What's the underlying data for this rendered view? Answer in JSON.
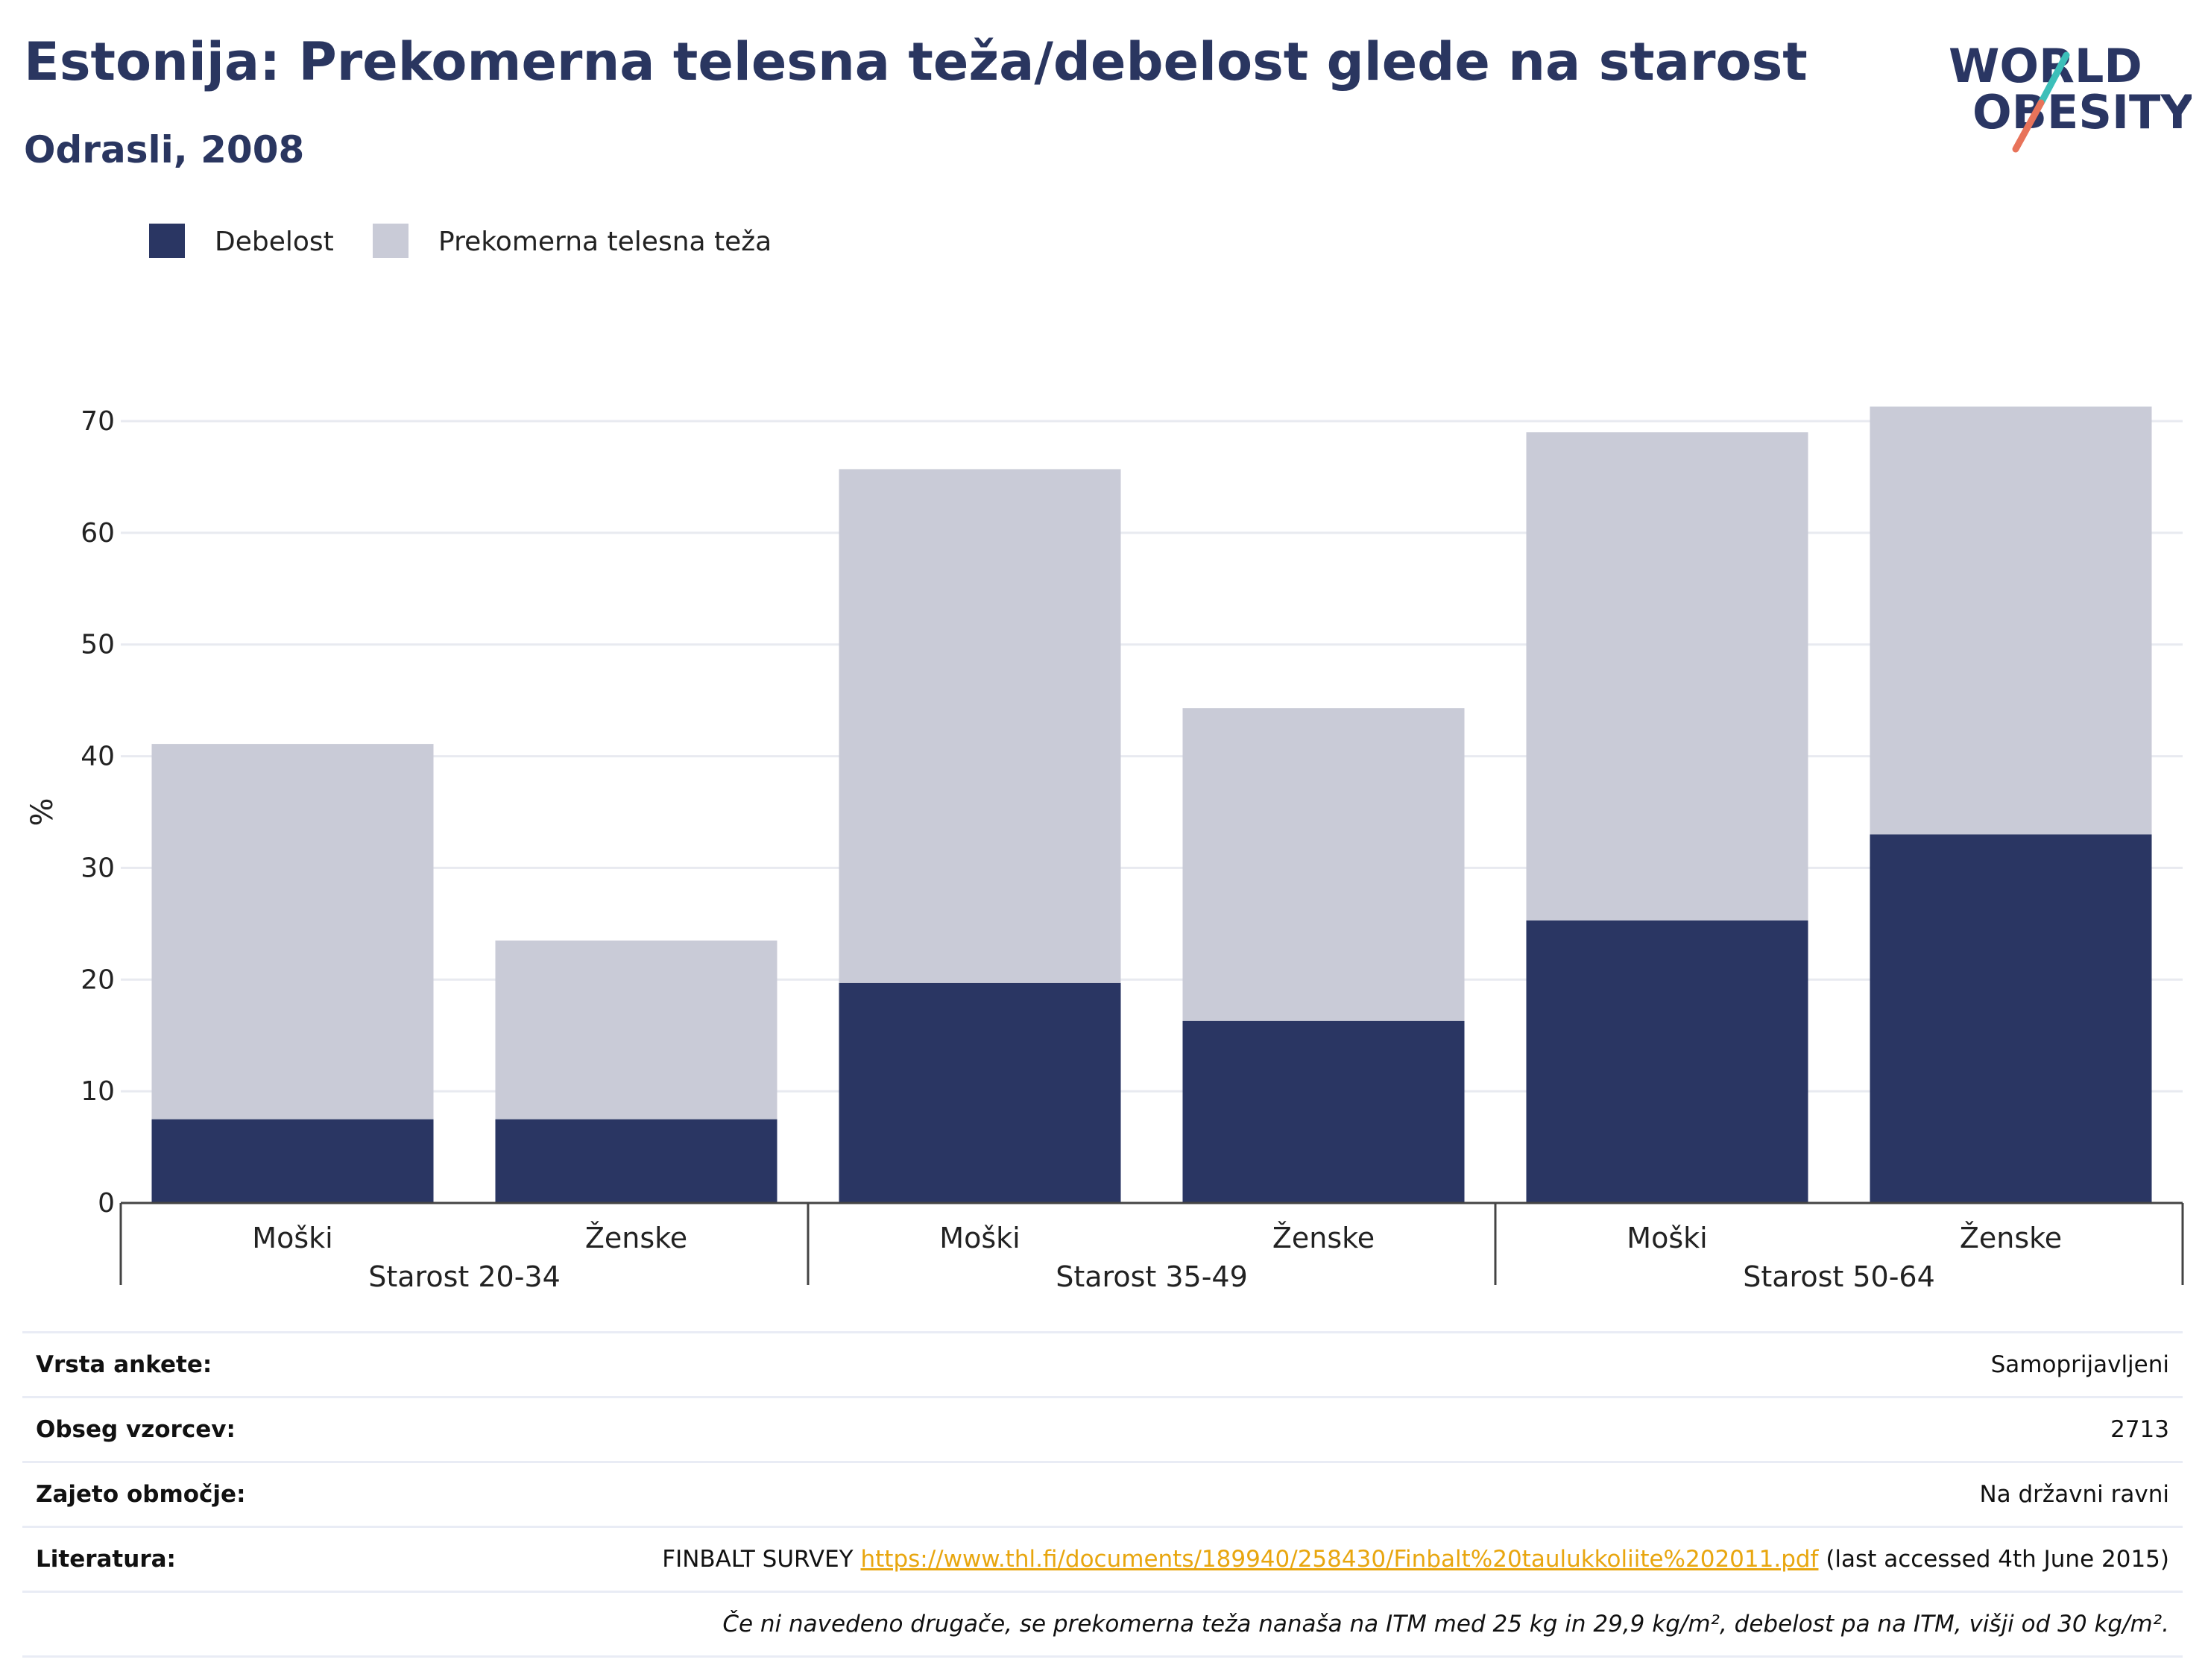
{
  "header": {
    "title": "Estonija: Prekomerna telesna teža/debelost glede na starost",
    "subtitle": "Odrasli, 2008"
  },
  "logo": {
    "line1": "WORLD",
    "line2": "OBESITY",
    "slash_colors": [
      "#3cbfb9",
      "#e8735a"
    ]
  },
  "colors": {
    "obesity": "#2a3663",
    "overweight": "#c9cbd7",
    "grid": "#e8eaf0",
    "axis": "#444444",
    "text": "#1f2a4a"
  },
  "chart_data": {
    "type": "bar",
    "stacked": true,
    "ylabel": "%",
    "ylim": [
      0,
      70
    ],
    "yticks": [
      0,
      10,
      20,
      30,
      40,
      50,
      60,
      70
    ],
    "legend": [
      "Debelost",
      "Prekomerna telesna teža"
    ],
    "legend_position": "top-left",
    "groups": [
      "Starost 20-34",
      "Starost 35-49",
      "Starost 50-64"
    ],
    "categories": [
      "Moški",
      "Ženske",
      "Moški",
      "Ženske",
      "Moški",
      "Ženske"
    ],
    "series": [
      {
        "name": "Debelost",
        "values": [
          7.5,
          7.5,
          19.7,
          16.3,
          25.3,
          33.0
        ]
      },
      {
        "name": "Prekomerna telesna teža",
        "values": [
          33.6,
          16.0,
          46.0,
          28.0,
          43.7,
          38.3
        ]
      }
    ],
    "grid": true
  },
  "info": {
    "rows": [
      {
        "label": "Vrsta ankete:",
        "value": "Samoprijavljeni"
      },
      {
        "label": "Obseg vzorcev:",
        "value": "2713"
      },
      {
        "label": "Zajeto območje:",
        "value": "Na državni ravni"
      }
    ],
    "literature": {
      "label": "Literatura:",
      "prefix": "FINBALT SURVEY ",
      "link": "https://www.thl.fi/documents/189940/258430/Finbalt%20taulukkoliite%202011.pdf",
      "suffix": " (last accessed 4th June 2015)"
    },
    "note": "Če ni navedeno drugače, se prekomerna teža nanaša na ITM med 25 kg in 29,9 kg/m², debelost pa na ITM, višji od 30 kg/m²."
  }
}
